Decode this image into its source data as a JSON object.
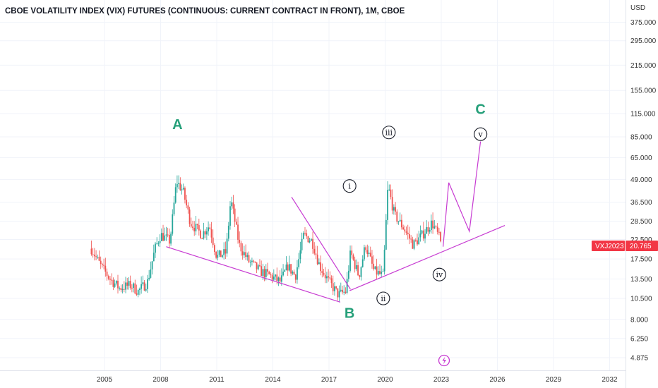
{
  "chart_data": {
    "type": "candlestick",
    "title": "CBOE VOLATILITY INDEX (VIX) FUTURES (CONTINUOUS: CURRENT CONTRACT IN FRONT), 1M, CBOE",
    "y_unit": "USD",
    "y_scale": "log",
    "y_ticks": [
      "375.000",
      "295.000",
      "215.000",
      "155.000",
      "115.000",
      "85.000",
      "65.000",
      "49.000",
      "36.500",
      "28.500",
      "22.500",
      "17.500",
      "13.500",
      "10.500",
      "8.000",
      "6.250",
      "4.875"
    ],
    "x_ticks": [
      "2005",
      "2008",
      "2011",
      "2014",
      "2017",
      "2020",
      "2023",
      "2026",
      "2029",
      "2032"
    ],
    "last_price": {
      "symbol": "VXJ2023",
      "value": "20.765"
    },
    "colors": {
      "up": "#26a69a",
      "down": "#ef5350",
      "wave_line": "#c73bd2",
      "wave_label": "#26a07a",
      "badge": "#f23645"
    },
    "price_anchors": [
      [
        2004.3,
        20
      ],
      [
        2004.8,
        16
      ],
      [
        2005.3,
        13.5
      ],
      [
        2005.8,
        12
      ],
      [
        2006.4,
        12.5
      ],
      [
        2006.8,
        11.5
      ],
      [
        2007.3,
        13
      ],
      [
        2007.7,
        20
      ],
      [
        2008.0,
        24
      ],
      [
        2008.5,
        22
      ],
      [
        2008.85,
        48
      ],
      [
        2009.2,
        42
      ],
      [
        2009.6,
        28
      ],
      [
        2010.2,
        24
      ],
      [
        2010.6,
        27
      ],
      [
        2011.0,
        18
      ],
      [
        2011.5,
        19
      ],
      [
        2011.75,
        38
      ],
      [
        2012.2,
        21
      ],
      [
        2012.7,
        17
      ],
      [
        2013.3,
        15
      ],
      [
        2013.9,
        14
      ],
      [
        2014.4,
        13
      ],
      [
        2014.8,
        16
      ],
      [
        2015.2,
        14
      ],
      [
        2015.65,
        24
      ],
      [
        2016.1,
        22
      ],
      [
        2016.5,
        16
      ],
      [
        2017.0,
        13
      ],
      [
        2017.5,
        11
      ],
      [
        2017.9,
        11.5
      ],
      [
        2018.15,
        19
      ],
      [
        2018.6,
        14
      ],
      [
        2018.95,
        21
      ],
      [
        2019.4,
        15
      ],
      [
        2019.9,
        14
      ],
      [
        2020.15,
        45
      ],
      [
        2020.5,
        31
      ],
      [
        2021.0,
        26
      ],
      [
        2021.5,
        21
      ],
      [
        2022.0,
        24
      ],
      [
        2022.5,
        28
      ],
      [
        2022.9,
        23
      ],
      [
        2023.0,
        20.765
      ]
    ],
    "trendlines": [
      {
        "from": [
          2008.3,
          20.5
        ],
        "to": [
          2017.6,
          10.0
        ]
      },
      {
        "from": [
          2015.0,
          39.0
        ],
        "to": [
          2018.15,
          11.8
        ]
      },
      {
        "from": [
          2018.1,
          11.6
        ],
        "to": [
          2026.4,
          27.0
        ]
      }
    ],
    "projection": [
      [
        2023.1,
        20.5
      ],
      [
        2023.4,
        47.0
      ],
      [
        2024.5,
        25.0
      ],
      [
        2025.1,
        80.0
      ]
    ],
    "wave_labels": [
      {
        "text": "A",
        "style": "major",
        "x": 2008.9,
        "y": 100
      },
      {
        "text": "B",
        "style": "major",
        "x": 2018.1,
        "y": 8.7
      },
      {
        "text": "C",
        "style": "major",
        "x": 2025.1,
        "y": 122
      },
      {
        "text": "i",
        "style": "minor",
        "x": 2018.1,
        "y": 45
      },
      {
        "text": "ii",
        "style": "minor",
        "x": 2019.9,
        "y": 10.5
      },
      {
        "text": "iii",
        "style": "minor",
        "x": 2020.2,
        "y": 90
      },
      {
        "text": "iv",
        "style": "minor",
        "x": 2022.9,
        "y": 14.3
      },
      {
        "text": "v",
        "style": "minor",
        "x": 2025.1,
        "y": 88
      }
    ]
  }
}
